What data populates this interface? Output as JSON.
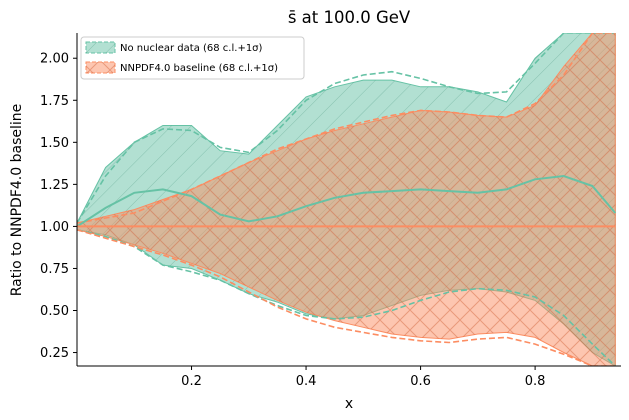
{
  "chart_data": {
    "type": "line",
    "title": "s̄ at 100.0 GeV",
    "xlabel": "x",
    "ylabel": "Ratio to NNPDF4.0 baseline",
    "xlim": [
      0.0,
      0.95
    ],
    "ylim": [
      0.17,
      2.15
    ],
    "xticks": [
      0.2,
      0.4,
      0.6,
      0.8
    ],
    "xtick_labels": [
      "0.2",
      "0.4",
      "0.6",
      "0.8"
    ],
    "yticks": [
      0.25,
      0.5,
      0.75,
      1.0,
      1.25,
      1.5,
      1.75,
      2.0
    ],
    "ytick_labels": [
      "0.25",
      "0.50",
      "0.75",
      "1.00",
      "1.25",
      "1.50",
      "1.75",
      "2.00"
    ],
    "legend_position": "upper-left",
    "colors": {
      "no_nuclear": "#66c2a5",
      "baseline": "#fc8d62"
    },
    "series": [
      {
        "name": "No nuclear data (68 c.l.+1σ)",
        "color": "#66c2a5",
        "x": [
          0.0,
          0.05,
          0.1,
          0.15,
          0.2,
          0.25,
          0.3,
          0.35,
          0.4,
          0.45,
          0.5,
          0.55,
          0.6,
          0.65,
          0.7,
          0.75,
          0.8,
          0.85,
          0.9,
          0.94
        ],
        "central": [
          1.0,
          1.11,
          1.2,
          1.22,
          1.18,
          1.07,
          1.03,
          1.06,
          1.12,
          1.17,
          1.2,
          1.21,
          1.22,
          1.21,
          1.2,
          1.22,
          1.28,
          1.3,
          1.24,
          1.08
        ],
        "band_upper": [
          1.02,
          1.35,
          1.5,
          1.6,
          1.6,
          1.45,
          1.43,
          1.6,
          1.77,
          1.83,
          1.87,
          1.87,
          1.83,
          1.83,
          1.8,
          1.74,
          2.0,
          2.15,
          2.15,
          2.15
        ],
        "band_lower": [
          0.98,
          0.95,
          0.89,
          0.77,
          0.75,
          0.68,
          0.6,
          0.55,
          0.48,
          0.45,
          0.47,
          0.53,
          0.59,
          0.62,
          0.63,
          0.61,
          0.56,
          0.42,
          0.25,
          0.17
        ],
        "cl_upper": [
          1.02,
          1.3,
          1.5,
          1.58,
          1.57,
          1.47,
          1.44,
          1.57,
          1.75,
          1.85,
          1.9,
          1.92,
          1.88,
          1.83,
          1.79,
          1.8,
          1.97,
          2.15,
          2.15,
          2.15
        ],
        "cl_lower": [
          0.98,
          0.94,
          0.88,
          0.77,
          0.73,
          0.68,
          0.6,
          0.53,
          0.47,
          0.45,
          0.46,
          0.5,
          0.56,
          0.61,
          0.63,
          0.62,
          0.58,
          0.47,
          0.3,
          0.17
        ]
      },
      {
        "name": "NNPDF4.0 baseline (68 c.l.+1σ)",
        "color": "#fc8d62",
        "x": [
          0.0,
          0.05,
          0.1,
          0.15,
          0.2,
          0.25,
          0.3,
          0.35,
          0.4,
          0.45,
          0.5,
          0.55,
          0.6,
          0.65,
          0.7,
          0.75,
          0.8,
          0.85,
          0.9,
          0.94
        ],
        "central": [
          1.0,
          1.0,
          1.0,
          1.0,
          1.0,
          1.0,
          1.0,
          1.0,
          1.0,
          1.0,
          1.0,
          1.0,
          1.0,
          1.0,
          1.0,
          1.0,
          1.0,
          1.0,
          1.0,
          1.0
        ],
        "band_upper": [
          1.02,
          1.06,
          1.1,
          1.16,
          1.22,
          1.3,
          1.38,
          1.45,
          1.52,
          1.57,
          1.61,
          1.65,
          1.69,
          1.68,
          1.66,
          1.65,
          1.72,
          1.95,
          2.15,
          2.15
        ],
        "band_lower": [
          0.98,
          0.94,
          0.89,
          0.84,
          0.78,
          0.72,
          0.64,
          0.56,
          0.49,
          0.44,
          0.4,
          0.36,
          0.34,
          0.33,
          0.36,
          0.37,
          0.34,
          0.25,
          0.17,
          0.17
        ],
        "cl_upper": [
          1.02,
          1.05,
          1.08,
          1.15,
          1.22,
          1.3,
          1.38,
          1.46,
          1.52,
          1.58,
          1.62,
          1.66,
          1.69,
          1.68,
          1.66,
          1.65,
          1.73,
          1.9,
          2.15,
          2.15
        ],
        "cl_lower": [
          0.98,
          0.93,
          0.88,
          0.83,
          0.77,
          0.7,
          0.61,
          0.52,
          0.45,
          0.4,
          0.37,
          0.34,
          0.32,
          0.31,
          0.33,
          0.34,
          0.3,
          0.24,
          0.17,
          0.17
        ]
      }
    ]
  }
}
